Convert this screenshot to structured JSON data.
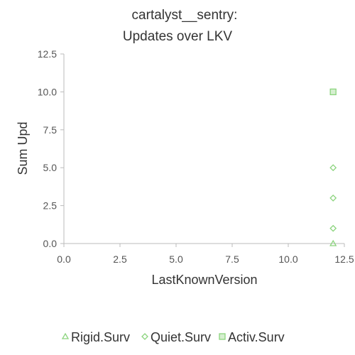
{
  "chart_data": {
    "type": "scatter",
    "title": [
      "cartalyst__sentry:",
      "Updates over LKV"
    ],
    "xlabel": "LastKnownVersion",
    "ylabel": "Sum Upd",
    "xlim": [
      0,
      12.5
    ],
    "ylim": [
      0,
      12.5
    ],
    "xticks": [
      "0.0",
      "2.5",
      "5.0",
      "7.5",
      "10.0",
      "12.5"
    ],
    "yticks": [
      "0.0",
      "2.5",
      "5.0",
      "7.5",
      "10.0",
      "12.5"
    ],
    "grid": false,
    "legend_position": "bottom",
    "marker_color": "#8cd47e",
    "series": [
      {
        "name": "Rigid.Surv",
        "marker": "triangle",
        "points": [
          [
            12,
            0
          ]
        ]
      },
      {
        "name": "Quiet.Surv",
        "marker": "diamond",
        "points": [
          [
            12,
            1
          ],
          [
            12,
            3
          ],
          [
            12,
            5
          ]
        ]
      },
      {
        "name": "Activ.Surv",
        "marker": "square",
        "points": [
          [
            12,
            10
          ]
        ]
      }
    ]
  }
}
